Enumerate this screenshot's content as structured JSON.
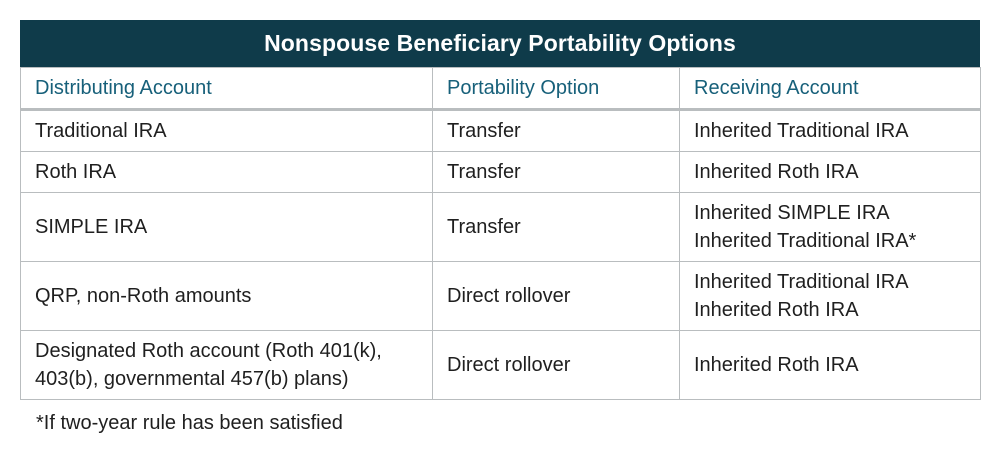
{
  "title": "Nonspouse Beneficiary Portability Options",
  "headers": {
    "distributing": "Distributing Account",
    "portability": "Portability Option",
    "receiving": "Receiving Account"
  },
  "rows": [
    {
      "distributing": [
        "Traditional IRA"
      ],
      "portability": "Transfer",
      "receiving": [
        "Inherited Traditional IRA"
      ]
    },
    {
      "distributing": [
        "Roth IRA"
      ],
      "portability": "Transfer",
      "receiving": [
        "Inherited Roth IRA"
      ]
    },
    {
      "distributing": [
        "SIMPLE IRA"
      ],
      "portability": "Transfer",
      "receiving": [
        "Inherited SIMPLE IRA",
        "Inherited Traditional IRA*"
      ]
    },
    {
      "distributing": [
        "QRP, non-Roth amounts"
      ],
      "portability": "Direct rollover",
      "receiving": [
        "Inherited Traditional IRA",
        "Inherited Roth IRA"
      ]
    },
    {
      "distributing": [
        "Designated Roth account (Roth 401(k),",
        "403(b), governmental 457(b) plans)"
      ],
      "portability": "Direct rollover",
      "receiving": [
        "Inherited Roth IRA"
      ]
    }
  ],
  "footnote": "*If two-year rule has been satisfied",
  "colors": {
    "title_bg": "#0f3b4a",
    "header_text": "#17607a",
    "border": "#b9bdbf"
  }
}
